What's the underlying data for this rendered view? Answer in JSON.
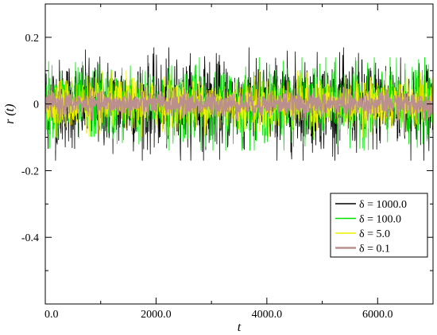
{
  "chart_data": {
    "type": "line",
    "title": "",
    "xlabel": "t",
    "ylabel": "r (t)",
    "xlim": [
      0,
      7000
    ],
    "ylim": [
      -0.6,
      0.3
    ],
    "x_ticks": [
      0,
      2000,
      4000,
      6000
    ],
    "x_tick_labels": [
      "0.0",
      "2000.0",
      "4000.0",
      "6000.0"
    ],
    "y_ticks": [
      0.2,
      0,
      -0.2,
      -0.4
    ],
    "y_tick_labels": [
      "0.2",
      "0",
      "-0.2",
      "-0.4"
    ],
    "grid": false,
    "legend_position": "lower-right",
    "series": [
      {
        "name": "δ = 1000.0",
        "color": "#000000",
        "envelope": [
          -0.17,
          0.17
        ]
      },
      {
        "name": "δ = 100.0",
        "color": "#00e000",
        "envelope": [
          -0.14,
          0.14
        ]
      },
      {
        "name": "δ = 5.0",
        "color": "#f0f000",
        "envelope": [
          -0.1,
          0.1
        ]
      },
      {
        "name": "δ = 0.1",
        "color": "#bc8f8f",
        "envelope": [
          -0.05,
          0.05
        ]
      }
    ]
  }
}
